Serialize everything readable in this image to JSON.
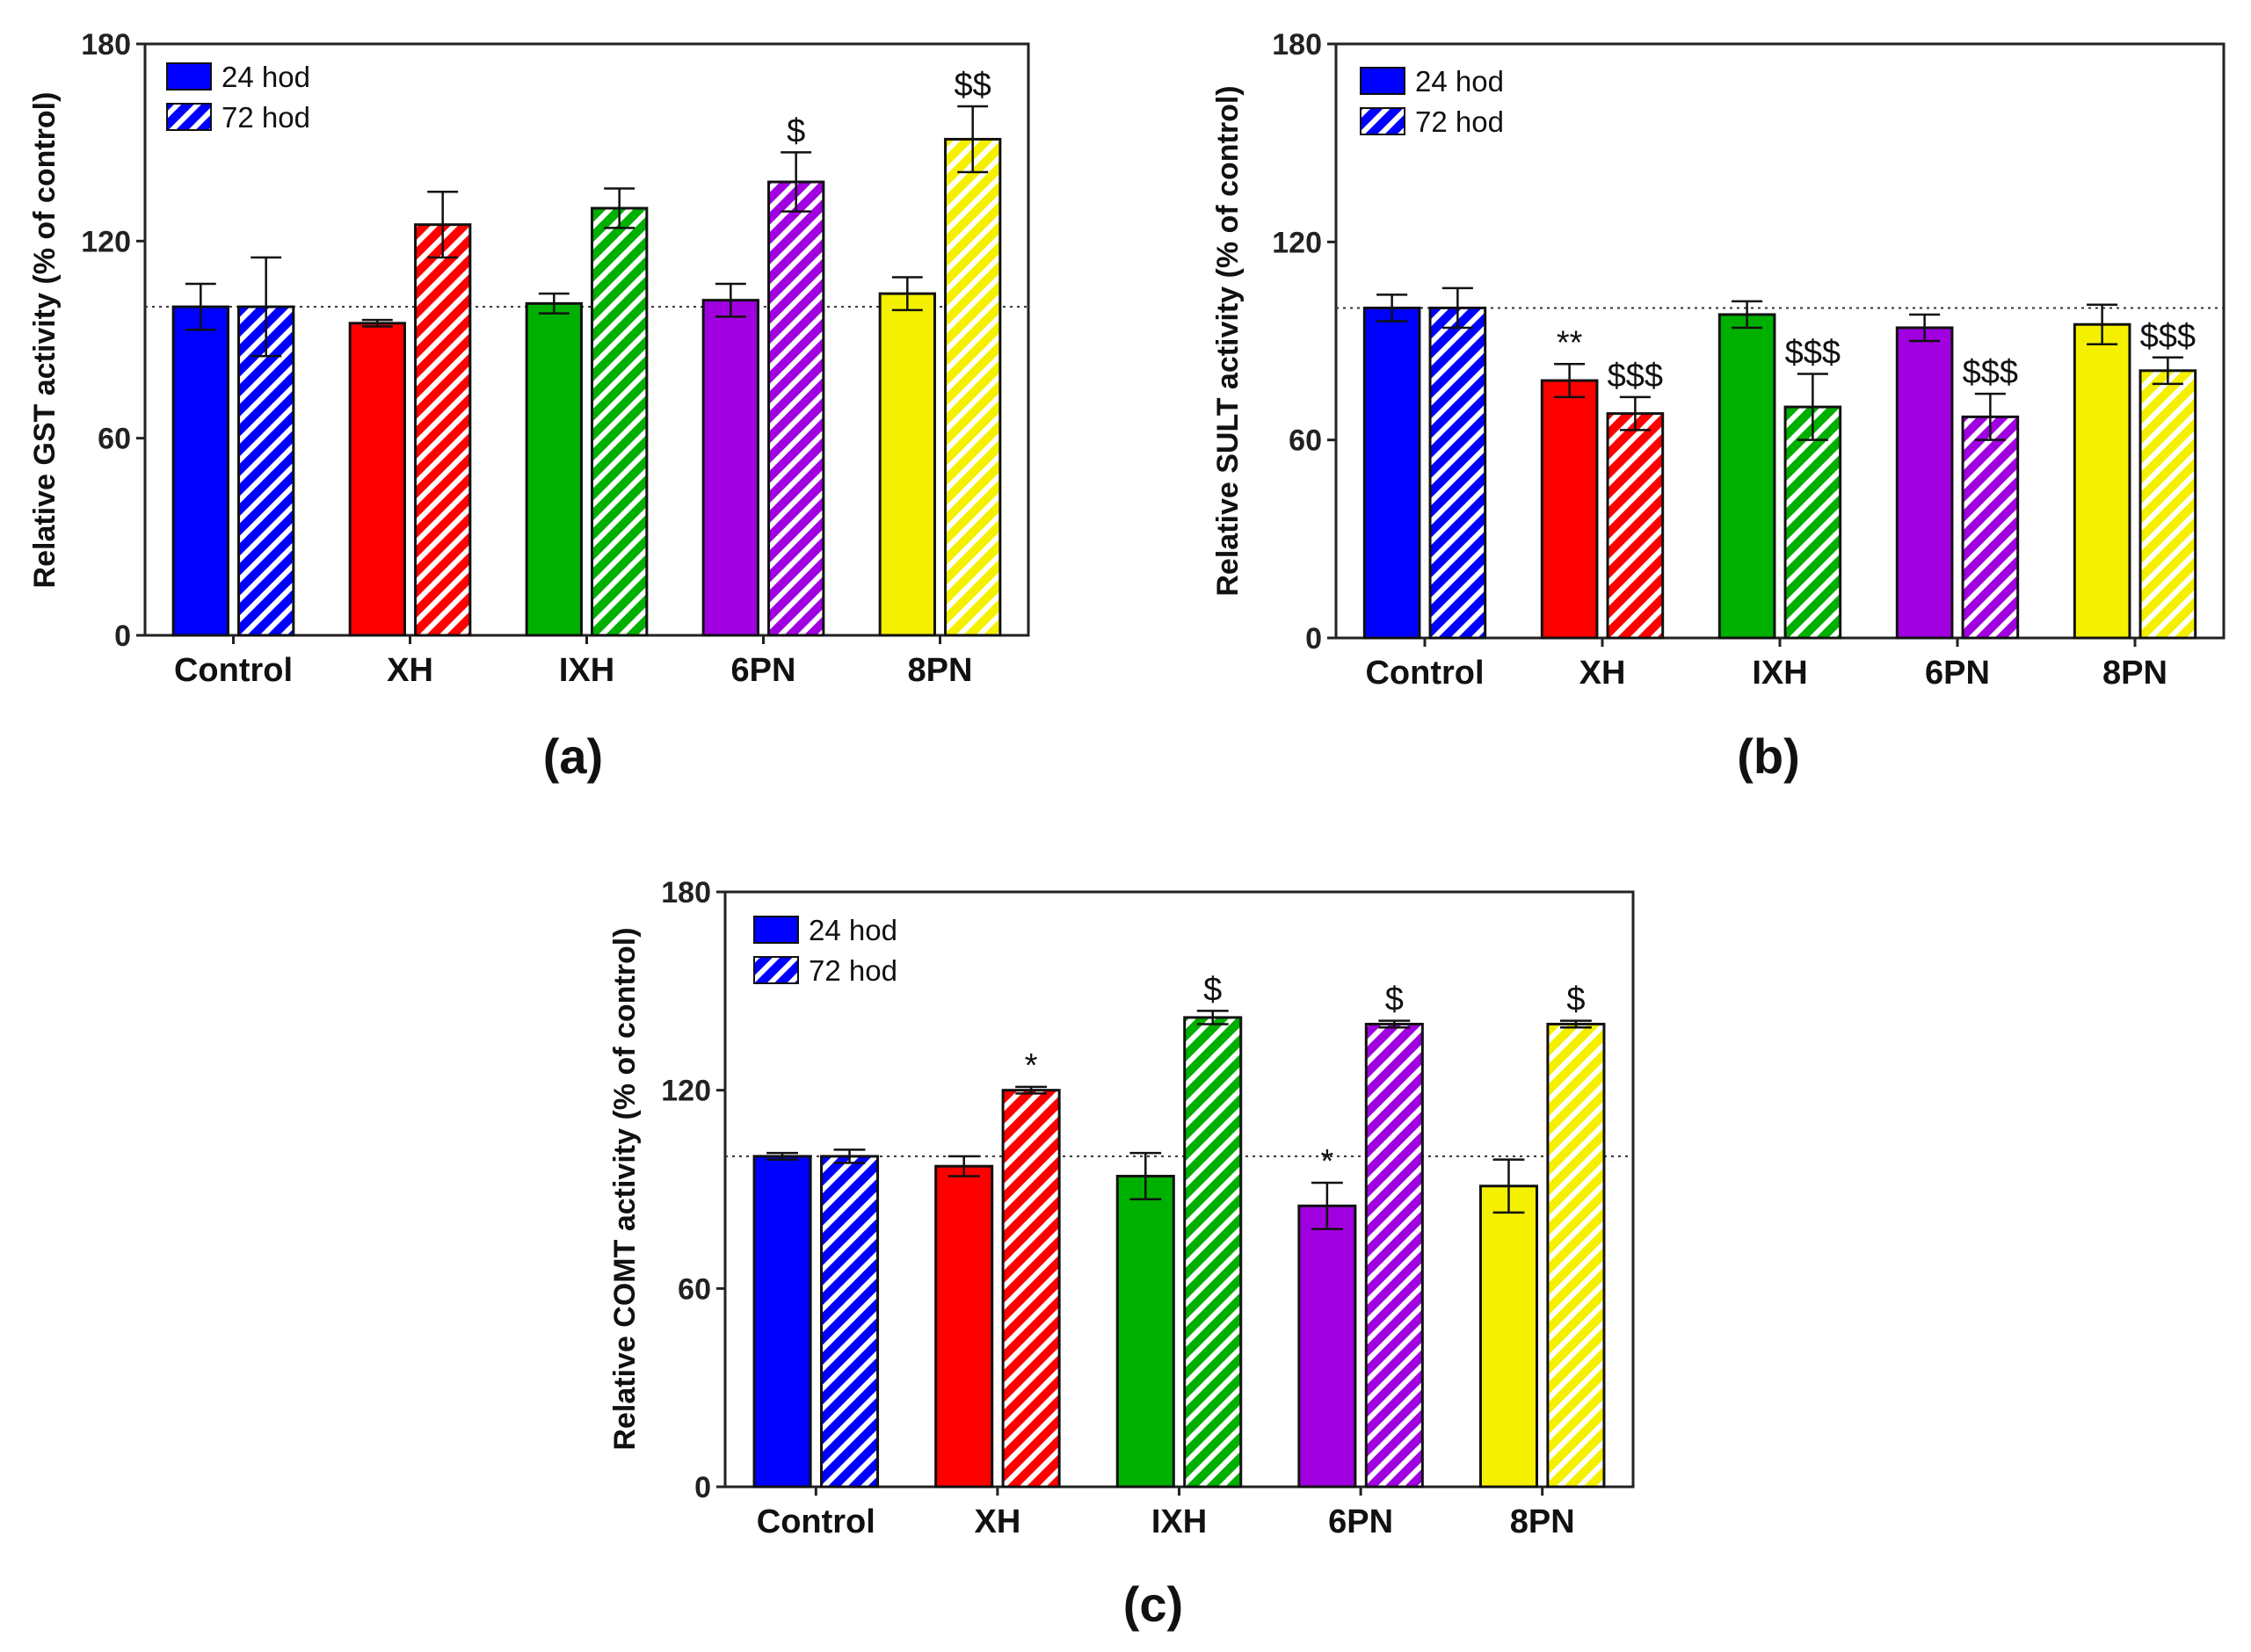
{
  "figure_title": "",
  "legend": {
    "series_24": "24 hod",
    "series_72": "72 hod"
  },
  "colors": {
    "Control": "#0000ff",
    "XH": "#ff0000",
    "IXH": "#00b000",
    "6PN": "#a000e0",
    "8PN": "#f5f000"
  },
  "chart_data": [
    {
      "type": "bar",
      "panel": "(a)",
      "ylabel": "Relative GST activity (% of control)",
      "ylim": [
        0,
        180
      ],
      "yticks": [
        "0",
        "60",
        "120",
        "180"
      ],
      "reference_line": 100,
      "categories": [
        "Control",
        "XH",
        "IXH",
        "6PN",
        "8PN"
      ],
      "series": [
        {
          "name": "24 hod",
          "values": [
            100,
            95,
            101,
            102,
            104
          ],
          "errors": [
            7,
            1,
            3,
            5,
            5
          ],
          "sig": [
            "",
            "",
            "",
            "",
            ""
          ]
        },
        {
          "name": "72 hod",
          "values": [
            100,
            125,
            130,
            138,
            151
          ],
          "errors": [
            15,
            10,
            6,
            9,
            10
          ],
          "sig": [
            "",
            "",
            "",
            "$",
            "$$"
          ]
        }
      ]
    },
    {
      "type": "bar",
      "panel": "(b)",
      "ylabel": "Relative SULT activity (% of control)",
      "ylim": [
        0,
        180
      ],
      "yticks": [
        "0",
        "60",
        "120",
        "180"
      ],
      "reference_line": 100,
      "categories": [
        "Control",
        "XH",
        "IXH",
        "6PN",
        "8PN"
      ],
      "series": [
        {
          "name": "24 hod",
          "values": [
            100,
            78,
            98,
            94,
            95
          ],
          "errors": [
            4,
            5,
            4,
            4,
            6
          ],
          "sig": [
            "",
            "**",
            "",
            "",
            ""
          ]
        },
        {
          "name": "72 hod",
          "values": [
            100,
            68,
            70,
            67,
            81
          ],
          "errors": [
            6,
            5,
            10,
            7,
            4
          ],
          "sig": [
            "",
            "$$$",
            "$$$",
            "$$$",
            "$$$"
          ]
        }
      ]
    },
    {
      "type": "bar",
      "panel": "(c)",
      "ylabel": "Relative COMT activity (% of control)",
      "ylim": [
        0,
        180
      ],
      "yticks": [
        "0",
        "60",
        "120",
        "180"
      ],
      "reference_line": 100,
      "categories": [
        "Control",
        "XH",
        "IXH",
        "6PN",
        "8PN"
      ],
      "series": [
        {
          "name": "24 hod",
          "values": [
            100,
            97,
            94,
            85,
            91
          ],
          "errors": [
            1,
            3,
            7,
            7,
            8
          ],
          "sig": [
            "",
            "",
            "",
            "*",
            ""
          ]
        },
        {
          "name": "72 hod",
          "values": [
            100,
            120,
            142,
            140,
            140
          ],
          "errors": [
            2,
            1,
            2,
            1,
            1
          ],
          "sig": [
            "",
            "*",
            "$",
            "$",
            "$"
          ]
        }
      ]
    }
  ]
}
